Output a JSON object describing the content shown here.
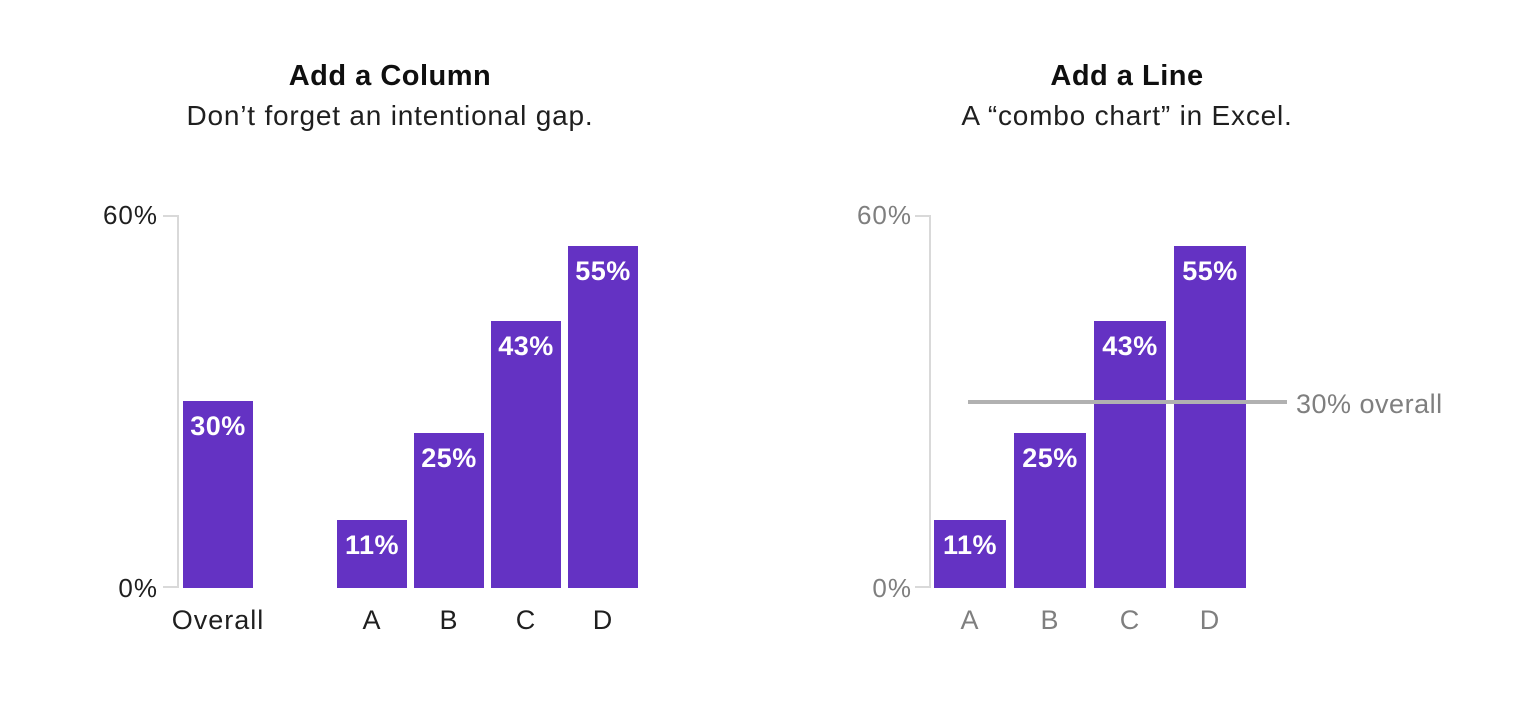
{
  "colors": {
    "bar": "#6432c3",
    "axis_line": "#d9d9d9",
    "reference_line": "#b1b1b1",
    "dark_text": "#1f1f1f",
    "gray_text": "#7f7f7f",
    "title_text": "#0f0f0f",
    "subtitle_text": "#1f1f1f",
    "data_label": "#ffffff",
    "background": "#ffffff"
  },
  "chart_data": [
    {
      "type": "bar",
      "title": "Add a Column",
      "subtitle": "Don’t forget an intentional gap.",
      "categories": [
        "Overall",
        "A",
        "B",
        "C",
        "D"
      ],
      "values": [
        30,
        11,
        25,
        43,
        55
      ],
      "data_labels": [
        "30%",
        "11%",
        "25%",
        "43%",
        "55%"
      ],
      "ylim": [
        0,
        60
      ],
      "yticks": [
        {
          "value": 60,
          "label": "60%"
        },
        {
          "value": 0,
          "label": "0%"
        }
      ],
      "axis_text_style": "dark",
      "grid": false,
      "legend": false
    },
    {
      "type": "bar",
      "title": "Add a Line",
      "subtitle": "A “combo chart” in Excel.",
      "categories": [
        "A",
        "B",
        "C",
        "D"
      ],
      "values": [
        11,
        25,
        43,
        55
      ],
      "data_labels": [
        "11%",
        "25%",
        "43%",
        "55%"
      ],
      "ylim": [
        0,
        60
      ],
      "yticks": [
        {
          "value": 60,
          "label": "60%"
        },
        {
          "value": 0,
          "label": "0%"
        }
      ],
      "axis_text_style": "gray",
      "grid": false,
      "legend": false,
      "reference_line": {
        "value": 30,
        "label": "30% overall"
      }
    }
  ]
}
